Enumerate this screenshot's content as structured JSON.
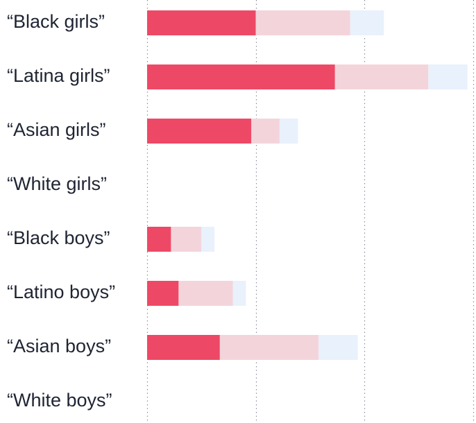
{
  "chart_data": {
    "type": "bar",
    "stacked": true,
    "orientation": "horizontal",
    "categories": [
      "“Black girls”",
      "“Latina girls”",
      "“Asian girls”",
      "“White girls”",
      "“Black boys”",
      "“Latino boys”",
      "“Asian boys”",
      "“White boys”"
    ],
    "series": [
      {
        "color": "#ed4966",
        "values": [
          10.0,
          17.3,
          9.6,
          0,
          2.2,
          2.9,
          6.7,
          0
        ]
      },
      {
        "color": "#f4d4db",
        "values": [
          8.7,
          8.6,
          2.6,
          0,
          2.8,
          5.0,
          9.1,
          0
        ]
      },
      {
        "color": "#e8f1fc",
        "values": [
          3.1,
          3.6,
          1.7,
          0,
          1.2,
          1.2,
          3.6,
          0
        ]
      }
    ],
    "xlim": [
      0,
      30
    ],
    "gridlines_at": [
      0,
      10,
      20,
      30
    ],
    "grid": true,
    "legend": "none"
  }
}
